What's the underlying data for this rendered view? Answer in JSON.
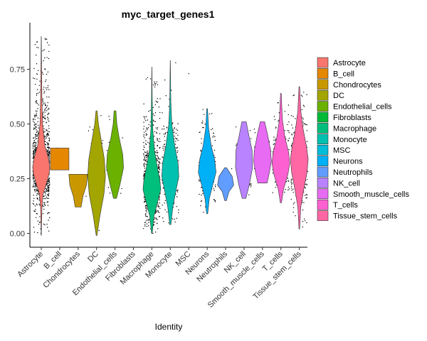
{
  "chart_data": {
    "type": "violin",
    "title": "myc_target_genes1",
    "xlabel": "Identity",
    "ylabel": "",
    "ylim": [
      -0.05,
      0.95
    ],
    "yticks": [
      "0.00",
      "0.25",
      "0.50",
      "0.75"
    ],
    "ytick_values": [
      0,
      0.25,
      0.5,
      0.75
    ],
    "grid": false,
    "legend_position": "right",
    "categories": [
      {
        "name": "Astrocyte",
        "color": "#F8766D",
        "n": 1200,
        "min": -0.01,
        "max": 0.9,
        "q": [
          [
            -0.01,
            0.005
          ],
          [
            0.12,
            0.04
          ],
          [
            0.18,
            0.1
          ],
          [
            0.22,
            0.25
          ],
          [
            0.27,
            0.42
          ],
          [
            0.3,
            0.46
          ],
          [
            0.34,
            0.4
          ],
          [
            0.4,
            0.2
          ],
          [
            0.5,
            0.07
          ],
          [
            0.62,
            0.035
          ],
          [
            0.75,
            0.02
          ],
          [
            0.9,
            0.005
          ]
        ]
      },
      {
        "name": "B_cell",
        "color": "#E58700",
        "n": 2,
        "min": 0.29,
        "max": 0.39,
        "q": [
          [
            0.29,
            0.5
          ],
          [
            0.39,
            0.5
          ]
        ]
      },
      {
        "name": "Chondrocytes",
        "color": "#C99800",
        "n": 2,
        "min": 0.12,
        "max": 0.27,
        "q": [
          [
            0.12,
            0.16
          ],
          [
            0.17,
            0.26
          ],
          [
            0.22,
            0.45
          ],
          [
            0.27,
            0.5
          ]
        ]
      },
      {
        "name": "DC",
        "color": "#A3A500",
        "n": 35,
        "min": -0.01,
        "max": 0.56,
        "q": [
          [
            -0.01,
            0.02
          ],
          [
            0.08,
            0.18
          ],
          [
            0.18,
            0.4
          ],
          [
            0.26,
            0.48
          ],
          [
            0.34,
            0.42
          ],
          [
            0.42,
            0.26
          ],
          [
            0.5,
            0.1
          ],
          [
            0.56,
            0.03
          ]
        ]
      },
      {
        "name": "Endothelial_cells",
        "color": "#6BB100",
        "n": 30,
        "min": 0.16,
        "max": 0.56,
        "q": [
          [
            0.16,
            0.08
          ],
          [
            0.22,
            0.26
          ],
          [
            0.3,
            0.46
          ],
          [
            0.36,
            0.42
          ],
          [
            0.44,
            0.22
          ],
          [
            0.5,
            0.1
          ],
          [
            0.56,
            0.05
          ]
        ]
      },
      {
        "name": "Fibroblasts",
        "color": "#00BA38",
        "n": 0
      },
      {
        "name": "Macrophage",
        "color": "#00BF7D",
        "n": 700,
        "min": 0.0,
        "max": 0.76,
        "q": [
          [
            0.0,
            0.02
          ],
          [
            0.08,
            0.12
          ],
          [
            0.14,
            0.3
          ],
          [
            0.2,
            0.48
          ],
          [
            0.24,
            0.44
          ],
          [
            0.3,
            0.3
          ],
          [
            0.38,
            0.14
          ],
          [
            0.48,
            0.05
          ],
          [
            0.62,
            0.02
          ],
          [
            0.76,
            0.005
          ]
        ]
      },
      {
        "name": "Monocyte",
        "color": "#00C0AF",
        "n": 280,
        "min": 0.04,
        "max": 0.79,
        "q": [
          [
            0.04,
            0.03
          ],
          [
            0.12,
            0.14
          ],
          [
            0.2,
            0.32
          ],
          [
            0.26,
            0.46
          ],
          [
            0.32,
            0.42
          ],
          [
            0.4,
            0.24
          ],
          [
            0.5,
            0.08
          ],
          [
            0.6,
            0.03
          ],
          [
            0.79,
            0.005
          ]
        ]
      },
      {
        "name": "MSC",
        "color": "#00BCD8",
        "n": 1,
        "points": [
          0.73
        ]
      },
      {
        "name": "Neurons",
        "color": "#00B0F6",
        "n": 160,
        "min": 0.09,
        "max": 0.57,
        "q": [
          [
            0.09,
            0.03
          ],
          [
            0.16,
            0.12
          ],
          [
            0.22,
            0.3
          ],
          [
            0.28,
            0.48
          ],
          [
            0.34,
            0.4
          ],
          [
            0.4,
            0.22
          ],
          [
            0.48,
            0.08
          ],
          [
            0.57,
            0.02
          ]
        ]
      },
      {
        "name": "Neutrophils",
        "color": "#619CFF",
        "n": 5,
        "min": 0.15,
        "max": 0.3,
        "q": [
          [
            0.15,
            0.05
          ],
          [
            0.19,
            0.18
          ],
          [
            0.22,
            0.44
          ],
          [
            0.26,
            0.36
          ],
          [
            0.3,
            0.05
          ]
        ]
      },
      {
        "name": "NK_cell",
        "color": "#B983FF",
        "n": 45,
        "min": 0.16,
        "max": 0.51,
        "q": [
          [
            0.16,
            0.1
          ],
          [
            0.22,
            0.28
          ],
          [
            0.3,
            0.46
          ],
          [
            0.38,
            0.44
          ],
          [
            0.44,
            0.28
          ],
          [
            0.51,
            0.12
          ]
        ]
      },
      {
        "name": "Smooth_muscle_cells",
        "color": "#E76BF3",
        "n": 40,
        "min": 0.23,
        "max": 0.51,
        "q": [
          [
            0.23,
            0.25
          ],
          [
            0.28,
            0.38
          ],
          [
            0.33,
            0.48
          ],
          [
            0.38,
            0.44
          ],
          [
            0.45,
            0.28
          ],
          [
            0.51,
            0.12
          ]
        ]
      },
      {
        "name": "T_cells",
        "color": "#FD61D1",
        "n": 160,
        "min": 0.14,
        "max": 0.64,
        "q": [
          [
            0.14,
            0.03
          ],
          [
            0.2,
            0.14
          ],
          [
            0.27,
            0.38
          ],
          [
            0.32,
            0.48
          ],
          [
            0.37,
            0.42
          ],
          [
            0.44,
            0.22
          ],
          [
            0.52,
            0.08
          ],
          [
            0.64,
            0.02
          ]
        ]
      },
      {
        "name": "Tissue_stem_cells",
        "color": "#FF67A4",
        "n": 260,
        "min": 0.02,
        "max": 0.67,
        "q": [
          [
            0.02,
            0.02
          ],
          [
            0.12,
            0.08
          ],
          [
            0.2,
            0.24
          ],
          [
            0.28,
            0.42
          ],
          [
            0.34,
            0.48
          ],
          [
            0.4,
            0.38
          ],
          [
            0.48,
            0.2
          ],
          [
            0.56,
            0.08
          ],
          [
            0.67,
            0.02
          ]
        ]
      }
    ]
  }
}
